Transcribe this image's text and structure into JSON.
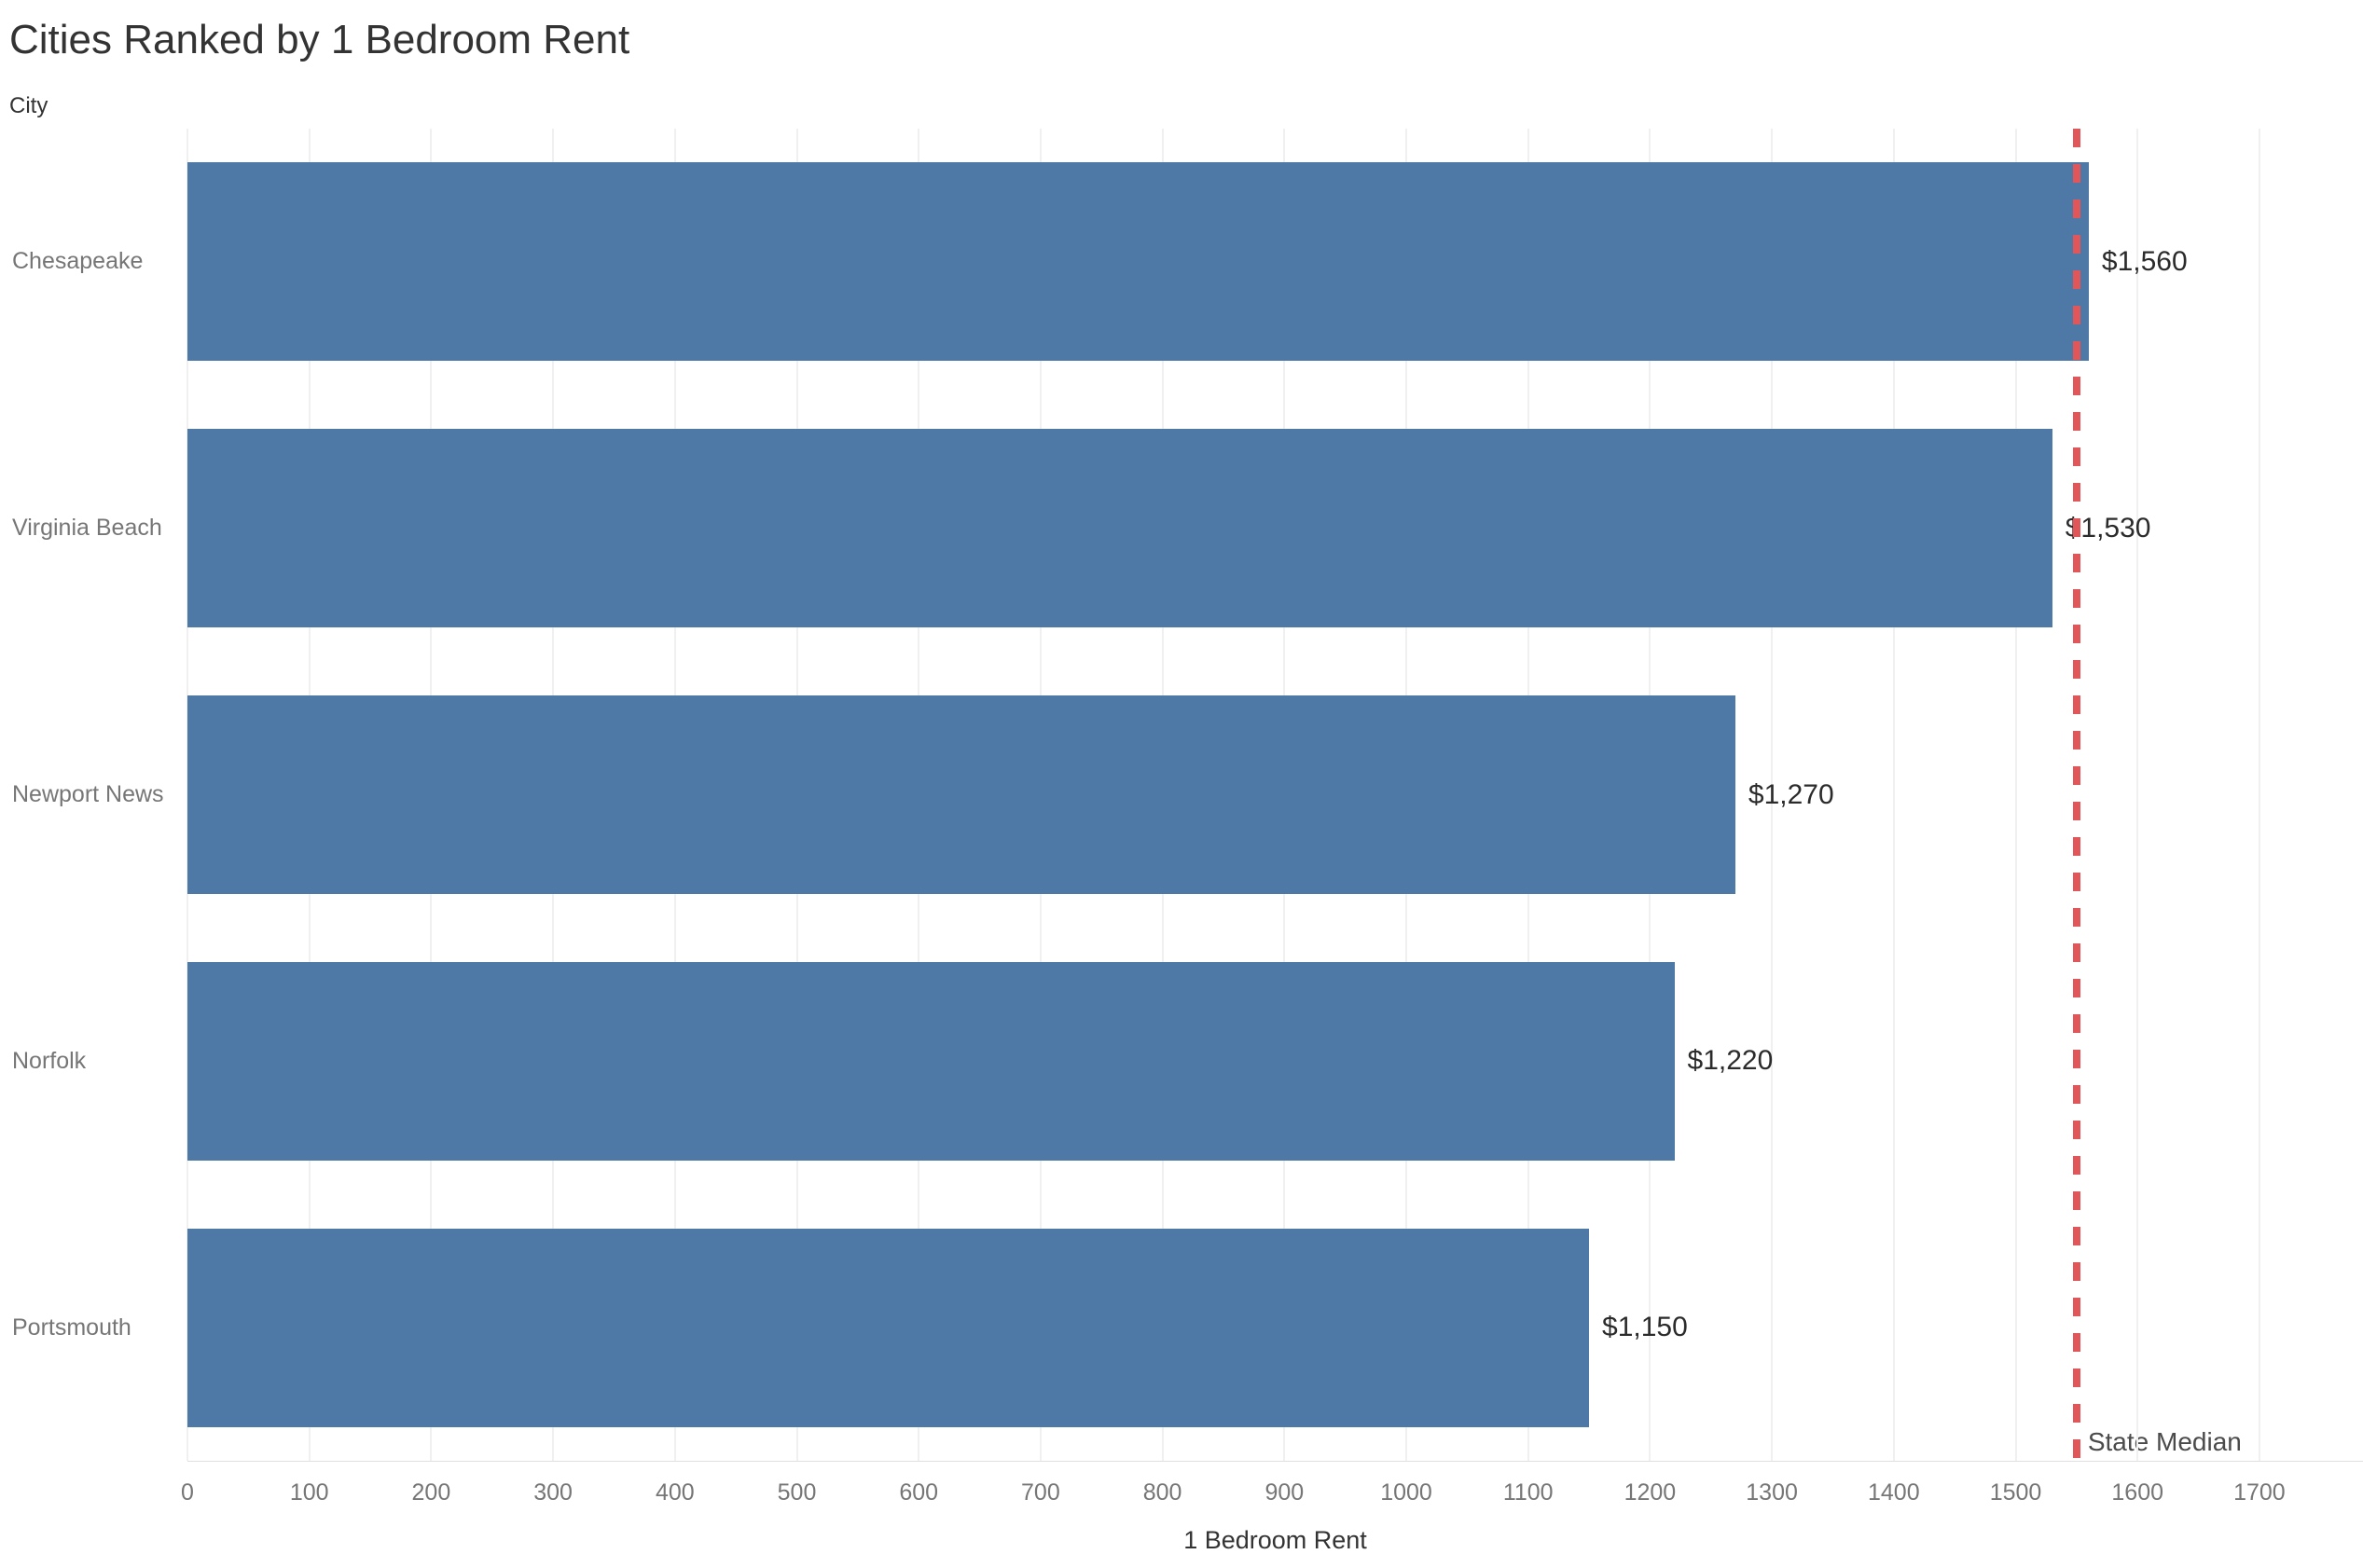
{
  "title": "Cities Ranked by 1 Bedroom Rent",
  "row_header": "City",
  "x_axis": {
    "title": "1 Bedroom Rent",
    "tick_labels": [
      "0",
      "100",
      "200",
      "300",
      "400",
      "500",
      "600",
      "700",
      "800",
      "900",
      "1000",
      "1100",
      "1200",
      "1300",
      "1400",
      "1500",
      "1600",
      "1700"
    ],
    "tick_values": [
      0,
      100,
      200,
      300,
      400,
      500,
      600,
      700,
      800,
      900,
      1000,
      1100,
      1200,
      1300,
      1400,
      1500,
      1600,
      1700
    ]
  },
  "reference_line": {
    "label": "State Median",
    "value": 1550,
    "color": "#e15759",
    "style": "dashed"
  },
  "colors": {
    "bar": "#4e79a7",
    "gridline": "#f0f0f0",
    "axis_rule": "#e0e0e0"
  },
  "chart_data": {
    "type": "bar",
    "orientation": "horizontal",
    "title": "Cities Ranked by 1 Bedroom Rent",
    "xlabel": "1 Bedroom Rent",
    "ylabel": "City",
    "categories": [
      "Chesapeake",
      "Virginia Beach",
      "Newport News",
      "Norfolk",
      "Portsmouth"
    ],
    "values": [
      1560,
      1530,
      1270,
      1220,
      1150
    ],
    "value_labels": [
      "$1,560",
      "$1,530",
      "$1,270",
      "$1,220",
      "$1,150"
    ],
    "xlim": [
      0,
      1785
    ],
    "grid": true,
    "annotations": [
      {
        "label": "State Median",
        "value": 1550
      }
    ]
  }
}
